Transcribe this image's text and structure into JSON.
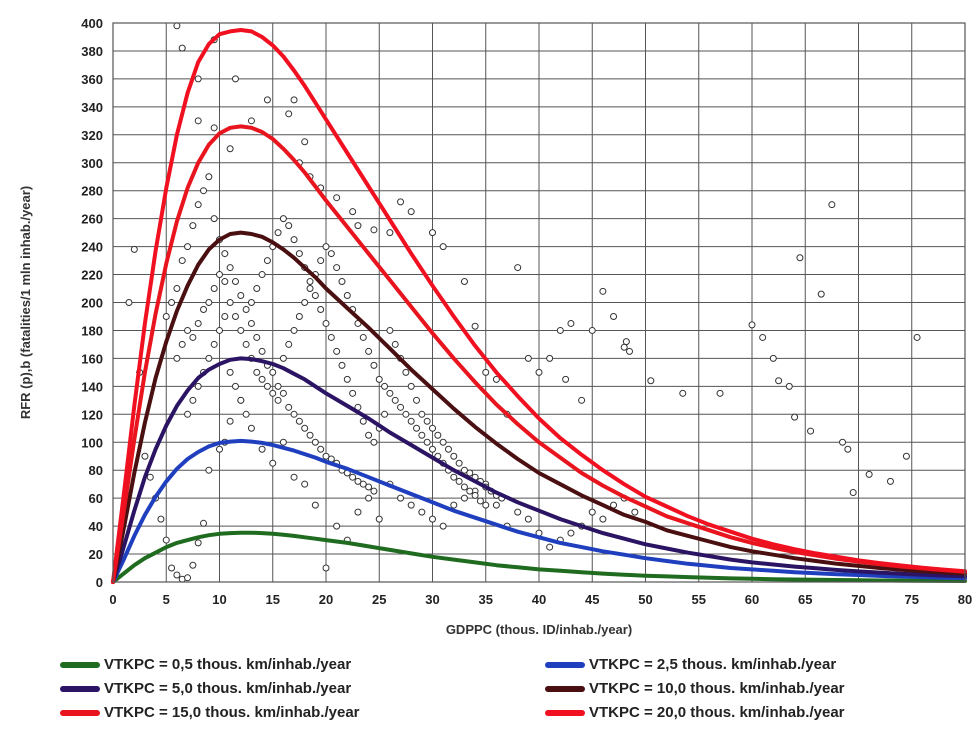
{
  "chart_data": {
    "type": "line",
    "title": "",
    "xlabel": "GDPPC (thous. ID/inhab./year)",
    "ylabel": "RFR (p),b (fatalities/1 mln inhab./year)",
    "xlim": [
      0,
      80
    ],
    "ylim": [
      0,
      400
    ],
    "x_ticks": [
      "0",
      "5",
      "10",
      "15",
      "20",
      "25",
      "30",
      "35",
      "40",
      "45",
      "50",
      "55",
      "60",
      "65",
      "70",
      "75",
      "80"
    ],
    "y_ticks": [
      "0",
      "20",
      "40",
      "60",
      "80",
      "100",
      "120",
      "140",
      "160",
      "180",
      "200",
      "220",
      "240",
      "260",
      "280",
      "300",
      "320",
      "340",
      "360",
      "380",
      "400"
    ],
    "grid": true,
    "legend_position": "bottom",
    "x": [
      0,
      1,
      2,
      3,
      4,
      5,
      6,
      7,
      8,
      9,
      10,
      11,
      12,
      13,
      14,
      15,
      16,
      17,
      18,
      19,
      20,
      22,
      24,
      26,
      28,
      30,
      32,
      34,
      36,
      38,
      40,
      42,
      44,
      46,
      48,
      50,
      52,
      54,
      56,
      58,
      60,
      62,
      64,
      66,
      68,
      70,
      72,
      74,
      76,
      78,
      80
    ],
    "series": [
      {
        "name": "VTKPC = 0,5 thous. km/inhab./year",
        "color": "#1f6b1f",
        "values": [
          0,
          6,
          12,
          17,
          21,
          25,
          28,
          30,
          32,
          33.5,
          34.5,
          35,
          35.3,
          35.3,
          35,
          34.5,
          33.8,
          33,
          32,
          31,
          30,
          28,
          25.5,
          23,
          20.5,
          18,
          16,
          14,
          12,
          10.5,
          9,
          8,
          7,
          6,
          5.2,
          4.5,
          4,
          3.5,
          3,
          2.6,
          2.3,
          2,
          1.8,
          1.6,
          1.4,
          1.2,
          1.1,
          1,
          0.9,
          0.8,
          0.7
        ]
      },
      {
        "name": "VTKPC = 2,5 thous. km/inhab./year",
        "color": "#1f3fbf",
        "values": [
          0,
          16,
          33,
          48,
          61,
          72,
          81,
          88,
          93,
          97,
          99.5,
          100.5,
          101,
          100.5,
          99.5,
          98,
          96,
          94,
          91.5,
          89,
          86,
          81,
          75,
          69,
          63,
          57,
          51,
          46,
          41,
          36,
          32,
          28,
          25,
          22,
          19.5,
          17,
          15,
          13,
          11.5,
          10,
          9,
          8,
          7,
          6.2,
          5.5,
          5,
          4.4,
          3.9,
          3.5,
          3.1,
          2.8
        ]
      },
      {
        "name": "VTKPC = 5,0 thous. km/inhab./year",
        "color": "#2a1463",
        "values": [
          0,
          25,
          51,
          75,
          95,
          112,
          126,
          137,
          146,
          152,
          156,
          159,
          160,
          159.5,
          158,
          156,
          153,
          149,
          145,
          140,
          135,
          126,
          117,
          107,
          98,
          89,
          80,
          72,
          64,
          57,
          51,
          45,
          40,
          35,
          31,
          27,
          24,
          21,
          18.5,
          16,
          14,
          12.5,
          11,
          9.8,
          8.6,
          7.6,
          6.7,
          5.9,
          5.2,
          4.6,
          4.1
        ]
      },
      {
        "name": "VTKPC = 10,0 thous. km/inhab./year",
        "color": "#4a0f10",
        "values": [
          0,
          38,
          78,
          114,
          146,
          172,
          194,
          212,
          227,
          238,
          245,
          249,
          250,
          249,
          247,
          243,
          238,
          232,
          225,
          218,
          210,
          196,
          182,
          167,
          152,
          138,
          124,
          111,
          99,
          88,
          78,
          70,
          62,
          55,
          48,
          43,
          37,
          33,
          29,
          25,
          22,
          19.5,
          17,
          15,
          13,
          11.5,
          10,
          8.8,
          7.8,
          6.8,
          6
        ]
      },
      {
        "name": "VTKPC = 15,0 thous. km/inhab./year",
        "color": "#e8141e",
        "values": [
          0,
          50,
          102,
          150,
          192,
          228,
          258,
          282,
          300,
          313,
          321,
          325,
          326,
          325,
          322,
          317,
          310,
          302,
          293,
          283,
          273,
          254,
          235,
          216,
          197,
          178,
          160,
          143,
          127,
          113,
          100,
          89,
          78,
          69,
          61,
          54,
          47,
          42,
          37,
          32,
          28,
          24.5,
          21.5,
          19,
          16.5,
          14.5,
          12.7,
          11.1,
          9.7,
          8.5,
          7.4
        ]
      },
      {
        "name": "VTKPC = 20,0 thous. km/inhab./year",
        "color": "#f01020",
        "values": [
          0,
          62,
          126,
          185,
          237,
          282,
          320,
          350,
          372,
          385,
          392,
          394,
          395,
          394,
          390,
          384,
          376,
          366,
          355,
          343,
          331,
          307,
          283,
          259,
          235,
          212,
          190,
          169,
          150,
          133,
          117,
          103,
          91,
          80,
          70,
          61,
          54,
          47,
          41,
          36,
          31,
          27,
          23.5,
          20.5,
          18,
          15.5,
          13.5,
          11.8,
          10.2,
          8.9,
          7.7
        ]
      }
    ],
    "scatter": [
      [
        6,
        398
      ],
      [
        6.5,
        382
      ],
      [
        8,
        360
      ],
      [
        9.5,
        388
      ],
      [
        11.5,
        360
      ],
      [
        8,
        330
      ],
      [
        9.5,
        325
      ],
      [
        11,
        310
      ],
      [
        13,
        330
      ],
      [
        14.5,
        345
      ],
      [
        17,
        345
      ],
      [
        16.5,
        335
      ],
      [
        18,
        315
      ],
      [
        17.5,
        300
      ],
      [
        18.5,
        290
      ],
      [
        19.5,
        282
      ],
      [
        21,
        275
      ],
      [
        22.5,
        265
      ],
      [
        23,
        255
      ],
      [
        24.5,
        252
      ],
      [
        26,
        250
      ],
      [
        27,
        272
      ],
      [
        28,
        265
      ],
      [
        30,
        250
      ],
      [
        31,
        240
      ],
      [
        33,
        215
      ],
      [
        34,
        183
      ],
      [
        35,
        150
      ],
      [
        36,
        145
      ],
      [
        37,
        120
      ],
      [
        38,
        225
      ],
      [
        39,
        160
      ],
      [
        40,
        150
      ],
      [
        41,
        160
      ],
      [
        42,
        180
      ],
      [
        43,
        185
      ],
      [
        42.5,
        145
      ],
      [
        44,
        130
      ],
      [
        45,
        180
      ],
      [
        46,
        208
      ],
      [
        47,
        190
      ],
      [
        48,
        168
      ],
      [
        48.5,
        165
      ],
      [
        48.2,
        172
      ],
      [
        50.5,
        144
      ],
      [
        53.5,
        135
      ],
      [
        57,
        135
      ],
      [
        60,
        184
      ],
      [
        61,
        175
      ],
      [
        62,
        160
      ],
      [
        62.5,
        144
      ],
      [
        63.5,
        140
      ],
      [
        64,
        118
      ],
      [
        64.5,
        232
      ],
      [
        65.5,
        108
      ],
      [
        66.5,
        206
      ],
      [
        67.5,
        270
      ],
      [
        68.5,
        100
      ],
      [
        69,
        95
      ],
      [
        69.5,
        64
      ],
      [
        71,
        77
      ],
      [
        73,
        72
      ],
      [
        74.5,
        90
      ],
      [
        75.5,
        175
      ],
      [
        2,
        238
      ],
      [
        1.5,
        200
      ],
      [
        2.5,
        150
      ],
      [
        3,
        90
      ],
      [
        3.5,
        75
      ],
      [
        4,
        60
      ],
      [
        4.5,
        45
      ],
      [
        5,
        30
      ],
      [
        5.5,
        10
      ],
      [
        6,
        5
      ],
      [
        6.5,
        2
      ],
      [
        7,
        3
      ],
      [
        7.5,
        12
      ],
      [
        8,
        28
      ],
      [
        8.5,
        42
      ],
      [
        9,
        80
      ],
      [
        10,
        95
      ],
      [
        10.5,
        100
      ],
      [
        11,
        115
      ],
      [
        12,
        130
      ],
      [
        13,
        110
      ],
      [
        14,
        95
      ],
      [
        15,
        85
      ],
      [
        16,
        100
      ],
      [
        17,
        75
      ],
      [
        18,
        70
      ],
      [
        19,
        55
      ],
      [
        20,
        10
      ],
      [
        21,
        40
      ],
      [
        22,
        30
      ],
      [
        23,
        50
      ],
      [
        24,
        60
      ],
      [
        25,
        45
      ],
      [
        26,
        70
      ],
      [
        27,
        60
      ],
      [
        28,
        55
      ],
      [
        29,
        50
      ],
      [
        30,
        45
      ],
      [
        31,
        40
      ],
      [
        32,
        55
      ],
      [
        33,
        60
      ],
      [
        34,
        65
      ],
      [
        35,
        70
      ],
      [
        36,
        55
      ],
      [
        37,
        40
      ],
      [
        38,
        50
      ],
      [
        39,
        45
      ],
      [
        40,
        35
      ],
      [
        41,
        25
      ],
      [
        42,
        30
      ],
      [
        43,
        35
      ],
      [
        44,
        40
      ],
      [
        45,
        50
      ],
      [
        46,
        45
      ],
      [
        47,
        55
      ],
      [
        48,
        60
      ],
      [
        49,
        50
      ],
      [
        5,
        190
      ],
      [
        5.5,
        200
      ],
      [
        6,
        210
      ],
      [
        6.5,
        230
      ],
      [
        7,
        240
      ],
      [
        7.5,
        255
      ],
      [
        8,
        270
      ],
      [
        8.5,
        280
      ],
      [
        9,
        290
      ],
      [
        9.5,
        260
      ],
      [
        10,
        245
      ],
      [
        10.5,
        235
      ],
      [
        11,
        225
      ],
      [
        11.5,
        215
      ],
      [
        12,
        205
      ],
      [
        12.5,
        195
      ],
      [
        13,
        185
      ],
      [
        13.5,
        175
      ],
      [
        14,
        165
      ],
      [
        14.5,
        155
      ],
      [
        15,
        150
      ],
      [
        15.5,
        140
      ],
      [
        16,
        135
      ],
      [
        16.5,
        125
      ],
      [
        17,
        120
      ],
      [
        17.5,
        115
      ],
      [
        18,
        110
      ],
      [
        18.5,
        105
      ],
      [
        19,
        100
      ],
      [
        19.5,
        95
      ],
      [
        20,
        90
      ],
      [
        20.5,
        88
      ],
      [
        21,
        85
      ],
      [
        21.5,
        80
      ],
      [
        22,
        78
      ],
      [
        22.5,
        75
      ],
      [
        23,
        72
      ],
      [
        23.5,
        70
      ],
      [
        24,
        68
      ],
      [
        24.5,
        65
      ],
      [
        6,
        160
      ],
      [
        6.5,
        170
      ],
      [
        7,
        180
      ],
      [
        7.5,
        175
      ],
      [
        8,
        185
      ],
      [
        8.5,
        195
      ],
      [
        9,
        200
      ],
      [
        9.5,
        210
      ],
      [
        10,
        220
      ],
      [
        10.5,
        215
      ],
      [
        11,
        200
      ],
      [
        11.5,
        190
      ],
      [
        12,
        180
      ],
      [
        12.5,
        170
      ],
      [
        13,
        160
      ],
      [
        13.5,
        150
      ],
      [
        14,
        145
      ],
      [
        14.5,
        140
      ],
      [
        15,
        135
      ],
      [
        15.5,
        130
      ],
      [
        16,
        160
      ],
      [
        16.5,
        170
      ],
      [
        17,
        180
      ],
      [
        17.5,
        190
      ],
      [
        18,
        200
      ],
      [
        18.5,
        210
      ],
      [
        19,
        220
      ],
      [
        19.5,
        230
      ],
      [
        20,
        240
      ],
      [
        20.5,
        235
      ],
      [
        21,
        225
      ],
      [
        21.5,
        215
      ],
      [
        22,
        205
      ],
      [
        22.5,
        195
      ],
      [
        23,
        185
      ],
      [
        23.5,
        175
      ],
      [
        24,
        165
      ],
      [
        24.5,
        155
      ],
      [
        25,
        145
      ],
      [
        25.5,
        140
      ],
      [
        26,
        135
      ],
      [
        26.5,
        130
      ],
      [
        27,
        125
      ],
      [
        27.5,
        120
      ],
      [
        28,
        115
      ],
      [
        28.5,
        110
      ],
      [
        29,
        105
      ],
      [
        29.5,
        100
      ],
      [
        30,
        95
      ],
      [
        30.5,
        90
      ],
      [
        31,
        85
      ],
      [
        31.5,
        80
      ],
      [
        32,
        75
      ],
      [
        32.5,
        72
      ],
      [
        33,
        68
      ],
      [
        33.5,
        65
      ],
      [
        34,
        62
      ],
      [
        34.5,
        58
      ],
      [
        35,
        55
      ],
      [
        7,
        120
      ],
      [
        7.5,
        130
      ],
      [
        8,
        140
      ],
      [
        8.5,
        150
      ],
      [
        9,
        160
      ],
      [
        9.5,
        170
      ],
      [
        10,
        180
      ],
      [
        10.5,
        190
      ],
      [
        11,
        150
      ],
      [
        11.5,
        140
      ],
      [
        12,
        130
      ],
      [
        12.5,
        120
      ],
      [
        13,
        200
      ],
      [
        13.5,
        210
      ],
      [
        14,
        220
      ],
      [
        14.5,
        230
      ],
      [
        15,
        240
      ],
      [
        15.5,
        250
      ],
      [
        16,
        260
      ],
      [
        16.5,
        255
      ],
      [
        17,
        245
      ],
      [
        17.5,
        235
      ],
      [
        18,
        225
      ],
      [
        18.5,
        215
      ],
      [
        19,
        205
      ],
      [
        19.5,
        195
      ],
      [
        20,
        185
      ],
      [
        20.5,
        175
      ],
      [
        21,
        165
      ],
      [
        21.5,
        155
      ],
      [
        22,
        145
      ],
      [
        22.5,
        135
      ],
      [
        23,
        125
      ],
      [
        23.5,
        115
      ],
      [
        24,
        105
      ],
      [
        24.5,
        100
      ],
      [
        25,
        110
      ],
      [
        25.5,
        120
      ],
      [
        26,
        180
      ],
      [
        26.5,
        170
      ],
      [
        27,
        160
      ],
      [
        27.5,
        150
      ],
      [
        28,
        140
      ],
      [
        28.5,
        130
      ],
      [
        29,
        120
      ],
      [
        29.5,
        115
      ],
      [
        30,
        110
      ],
      [
        30.5,
        105
      ],
      [
        31,
        100
      ],
      [
        31.5,
        95
      ],
      [
        32,
        90
      ],
      [
        32.5,
        85
      ],
      [
        33,
        80
      ],
      [
        33.5,
        78
      ],
      [
        34,
        75
      ],
      [
        34.5,
        72
      ],
      [
        35,
        68
      ],
      [
        35.5,
        65
      ],
      [
        36,
        62
      ],
      [
        36.5,
        60
      ]
    ]
  }
}
